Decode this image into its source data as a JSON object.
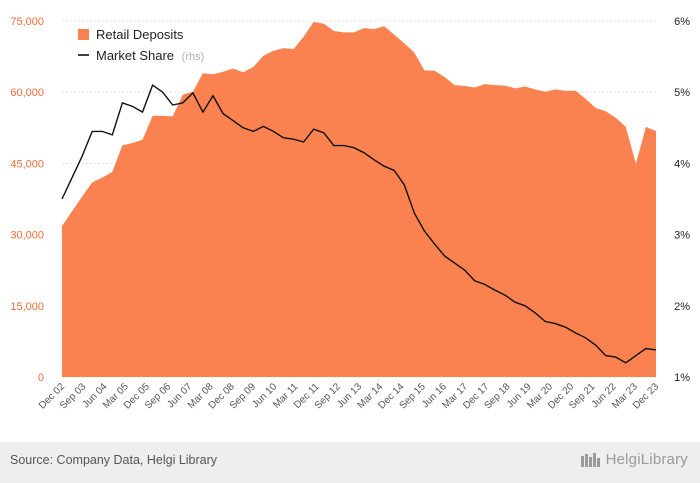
{
  "chart_data": {
    "type": "area",
    "title": "",
    "xlabel": "",
    "ylabel": "",
    "ylim": [
      0,
      75000
    ],
    "y2lim": [
      1,
      6
    ],
    "x_tick_labels": [
      "Dec 02",
      "Sep 03",
      "Jun 04",
      "Mar 05",
      "Dec 05",
      "Sep 06",
      "Jun 07",
      "Mar 08",
      "Dec 08",
      "Sep 09",
      "Jun 10",
      "Mar 11",
      "Dec 11",
      "Sep 12",
      "Jun 13",
      "Mar 14",
      "Dec 14",
      "Sep 15",
      "Jun 16",
      "Mar 17",
      "Dec 17",
      "Sep 18",
      "Jun 19",
      "Mar 20",
      "Dec 20",
      "Sep 21",
      "Jun 22",
      "Mar 23",
      "Dec 23"
    ],
    "y_tick_labels": [
      "0",
      "15,000",
      "30,000",
      "45,000",
      "60,000",
      "75,000"
    ],
    "y2_tick_labels": [
      "1%",
      "2%",
      "3%",
      "4%",
      "5%",
      "6%"
    ],
    "legend_position": "top-left",
    "series": [
      {
        "name": "Retail Deposits",
        "axis": "left",
        "kind": "area",
        "color": "#f98250",
        "values": [
          31800,
          34900,
          38000,
          41000,
          42000,
          43200,
          48800,
          49300,
          50000,
          55000,
          55000,
          54900,
          59500,
          60100,
          64000,
          63800,
          64300,
          65000,
          64200,
          65300,
          67700,
          68700,
          69300,
          69100,
          71700,
          74800,
          74400,
          72900,
          72600,
          72600,
          73500,
          73300,
          73900,
          72100,
          70300,
          68300,
          64600,
          64500,
          63200,
          61500,
          61300,
          61000,
          61700,
          61500,
          61400,
          60800,
          61200,
          60600,
          60100,
          60600,
          60300,
          60300,
          58600,
          56700,
          56000,
          54600,
          52700,
          44900,
          52700,
          51800
        ],
        "has_extra_point": true
      },
      {
        "name": "Market Share",
        "name_suffix": "(rhs)",
        "axis": "right",
        "kind": "line",
        "color": "#111111",
        "values": [
          3.5,
          3.8,
          4.1,
          4.45,
          4.45,
          4.4,
          4.85,
          4.8,
          4.72,
          5.1,
          5.0,
          4.82,
          4.85,
          4.99,
          4.72,
          4.95,
          4.7,
          4.6,
          4.5,
          4.45,
          4.52,
          4.45,
          4.36,
          4.34,
          4.3,
          4.48,
          4.43,
          4.25,
          4.25,
          4.22,
          4.15,
          4.05,
          3.96,
          3.9,
          3.7,
          3.3,
          3.05,
          2.87,
          2.7,
          2.6,
          2.5,
          2.35,
          2.3,
          2.22,
          2.15,
          2.05,
          2.0,
          1.9,
          1.78,
          1.75,
          1.7,
          1.62,
          1.55,
          1.45,
          1.3,
          1.28,
          1.2,
          1.3,
          1.4,
          1.38
        ]
      }
    ]
  },
  "footer": {
    "source": "Source: Company Data, Helgi Library",
    "brand": "HelgiLibrary"
  }
}
